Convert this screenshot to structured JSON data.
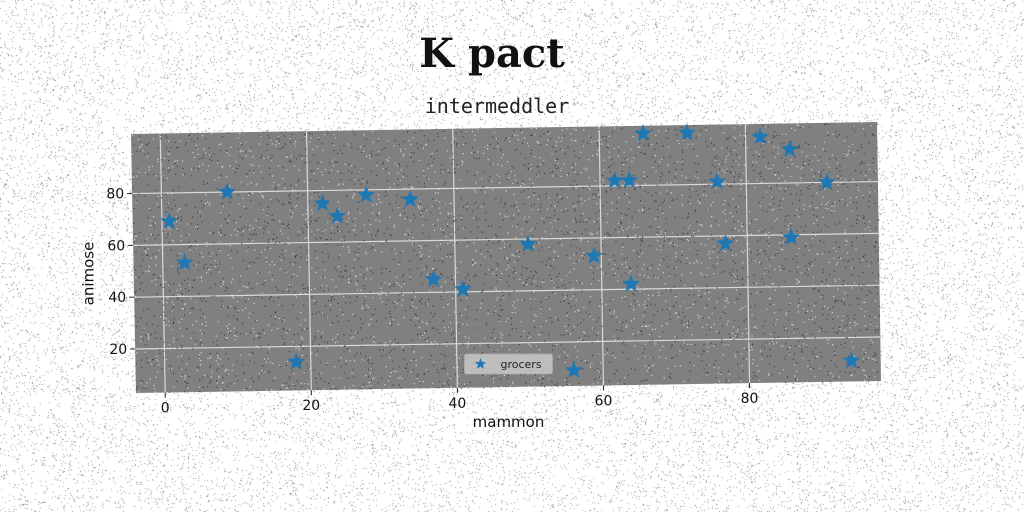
{
  "page": {
    "title": "K pact",
    "subtitle": "intermeddler"
  },
  "chart_data": {
    "type": "scatter",
    "title": "K pact",
    "subtitle": "intermeddler",
    "xlabel": "mammon",
    "ylabel": "animose",
    "xlim": [
      -4,
      98
    ],
    "ylim": [
      3,
      103
    ],
    "xticks": [
      0,
      20,
      40,
      60,
      80
    ],
    "yticks": [
      20,
      40,
      60,
      80
    ],
    "grid": true,
    "legend_position": "bottom-center",
    "marker": "star",
    "colors": {
      "marker": "#1f77b4",
      "plot_bg": "#808080",
      "grid": "#d9d9d9"
    },
    "series": [
      {
        "name": "grocers",
        "x": [
          1,
          3,
          9,
          18,
          22,
          24,
          28,
          34,
          37,
          41,
          50,
          56,
          59,
          62,
          64,
          64,
          66,
          72,
          76,
          77,
          82,
          86,
          86,
          91,
          94
        ],
        "y": [
          69,
          53,
          80,
          14,
          75,
          70,
          78,
          76,
          45,
          41,
          58,
          9,
          53,
          82,
          82,
          42,
          100,
          100,
          81,
          57,
          98,
          93,
          59,
          80,
          11
        ]
      }
    ]
  }
}
